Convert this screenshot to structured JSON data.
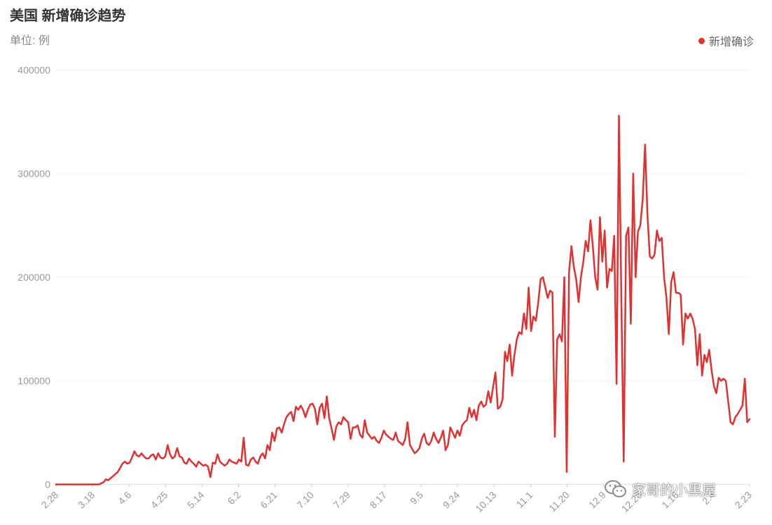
{
  "header": {
    "title": "美国 新增确诊趋势",
    "unit": "单位: 例"
  },
  "legend": {
    "label": "新增确诊",
    "color": "#e03030",
    "position": "top-right"
  },
  "watermark": {
    "text": "家哥的小黑屋",
    "icon": "wechat-icon"
  },
  "chart_data": {
    "type": "line",
    "title": "美国 新增确诊趋势",
    "subtitle": "单位: 例",
    "xlabel": "",
    "ylabel": "",
    "ylim": [
      0,
      400000
    ],
    "yticks": [
      0,
      100000,
      200000,
      300000,
      400000
    ],
    "grid": true,
    "legend_position": "top-right",
    "x_tick_labels": [
      "2.28",
      "3.18",
      "4.6",
      "4.25",
      "5.14",
      "6.2",
      "6.21",
      "7.10",
      "7.29",
      "8.17",
      "9.5",
      "9.24",
      "10.13",
      "11.1",
      "11.20",
      "12.9",
      "12.28",
      "1.16",
      "2.4",
      "2.23"
    ],
    "series": [
      {
        "name": "新增确诊",
        "color": "#e03030",
        "x_start": "2.28",
        "step_days": 1,
        "values": [
          0,
          0,
          0,
          0,
          0,
          0,
          0,
          0,
          0,
          0,
          0,
          0,
          0,
          0,
          0,
          0,
          0,
          0,
          0,
          1000,
          2000,
          5000,
          4000,
          6000,
          8000,
          10000,
          12000,
          16000,
          20000,
          22000,
          20000,
          21000,
          26000,
          32000,
          28000,
          27000,
          30000,
          27000,
          25000,
          25000,
          28000,
          29000,
          24000,
          30000,
          26000,
          25000,
          27000,
          38000,
          29000,
          25000,
          27000,
          35000,
          27000,
          26000,
          21000,
          20000,
          25000,
          22000,
          20000,
          17000,
          22000,
          20000,
          18000,
          19000,
          17000,
          7000,
          21000,
          20000,
          29000,
          22000,
          20000,
          18000,
          20000,
          24000,
          22000,
          21000,
          20000,
          24000,
          22000,
          45000,
          19000,
          18000,
          24000,
          26000,
          22000,
          20000,
          27000,
          30000,
          25000,
          38000,
          33000,
          50000,
          42000,
          54000,
          55000,
          50000,
          58000,
          65000,
          68000,
          70000,
          61000,
          75000,
          72000,
          76000,
          72000,
          65000,
          72000,
          77000,
          78000,
          73000,
          58000,
          74000,
          78000,
          64000,
          85000,
          64000,
          54000,
          43000,
          56000,
          60000,
          58000,
          65000,
          62000,
          60000,
          44000,
          55000,
          55000,
          57000,
          48000,
          45000,
          62000,
          50000,
          47000,
          44000,
          46000,
          42000,
          40000,
          45000,
          52000,
          48000,
          46000,
          44000,
          43000,
          50000,
          42000,
          40000,
          38000,
          44000,
          60000,
          38000,
          34000,
          30000,
          32000,
          35000,
          44000,
          49000,
          40000,
          38000,
          42000,
          50000,
          44000,
          40000,
          45000,
          52000,
          33000,
          38000,
          55000,
          50000,
          45000,
          52000,
          47000,
          57000,
          60000,
          62000,
          74000,
          65000,
          72000,
          62000,
          76000,
          80000,
          75000,
          77000,
          90000,
          79000,
          94000,
          108000,
          73000,
          75000,
          82000,
          128000,
          119000,
          135000,
          105000,
          125000,
          140000,
          147000,
          145000,
          165000,
          150000,
          190000,
          148000,
          162000,
          158000,
          175000,
          198000,
          200000,
          190000,
          180000,
          187000,
          185000,
          46000,
          140000,
          145000,
          138000,
          200000,
          12000,
          205000,
          230000,
          210000,
          198000,
          176000,
          200000,
          215000,
          235000,
          225000,
          255000,
          230000,
          200000,
          188000,
          258000,
          215000,
          245000,
          190000,
          208000,
          206000,
          240000,
          97000,
          356000,
          180000,
          22000,
          240000,
          248000,
          155000,
          300000,
          200000,
          244000,
          250000,
          275000,
          328000,
          260000,
          220000,
          218000,
          222000,
          245000,
          235000,
          238000,
          200000,
          180000,
          145000,
          195000,
          205000,
          185000,
          185000,
          183000,
          135000,
          165000,
          160000,
          165000,
          160000,
          150000,
          115000,
          145000,
          105000,
          125000,
          118000,
          130000,
          110000,
          95000,
          88000,
          103000,
          100000,
          102000,
          100000,
          80000,
          60000,
          58000,
          65000,
          68000,
          72000,
          76000,
          102000,
          60000,
          63000
        ]
      }
    ]
  }
}
